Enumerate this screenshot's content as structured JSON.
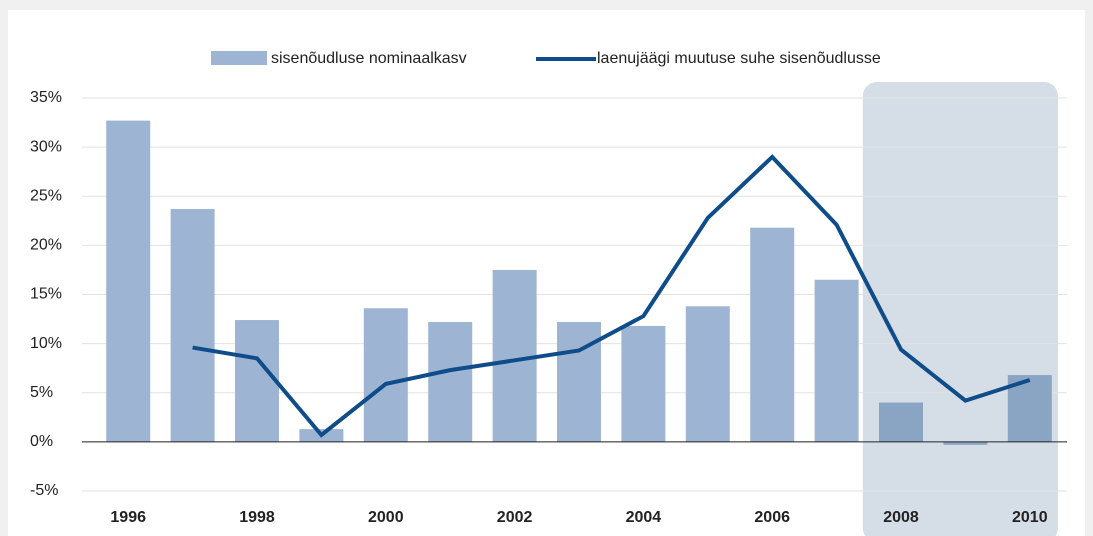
{
  "chart_data": {
    "type": "bar-line",
    "categories": [
      "1996",
      null,
      "1998",
      null,
      "2000",
      null,
      "2002",
      null,
      "2004",
      null,
      "2006",
      null,
      "2008",
      null,
      "2010"
    ],
    "series": [
      {
        "name": "sisenõudluse nominaalkasv",
        "type": "bar",
        "color": "#9db5d3",
        "values": [
          32.7,
          23.7,
          12.4,
          1.3,
          13.6,
          12.2,
          17.5,
          12.2,
          11.8,
          13.8,
          21.8,
          16.5,
          4.0,
          -0.3,
          6.8
        ]
      },
      {
        "name": "laenujäägi muutuse suhe sisenõudlusse",
        "type": "line",
        "color": "#0f4c8a",
        "values": [
          null,
          9.6,
          8.5,
          0.7,
          5.9,
          7.3,
          8.3,
          9.3,
          12.8,
          22.8,
          29.0,
          22.1,
          9.4,
          4.2,
          6.3
        ]
      }
    ],
    "ylim": [
      -5,
      35
    ],
    "yticks": [
      {
        "value": -5,
        "label": "-5%"
      },
      {
        "value": 0,
        "label": "0%"
      },
      {
        "value": 5,
        "label": "5%"
      },
      {
        "value": 10,
        "label": "10%"
      },
      {
        "value": 15,
        "label": "15%"
      },
      {
        "value": 20,
        "label": "20%"
      },
      {
        "value": 25,
        "label": "25%"
      },
      {
        "value": 30,
        "label": "30%"
      },
      {
        "value": 35,
        "label": "35%"
      }
    ],
    "grid": true,
    "legend": "top"
  }
}
